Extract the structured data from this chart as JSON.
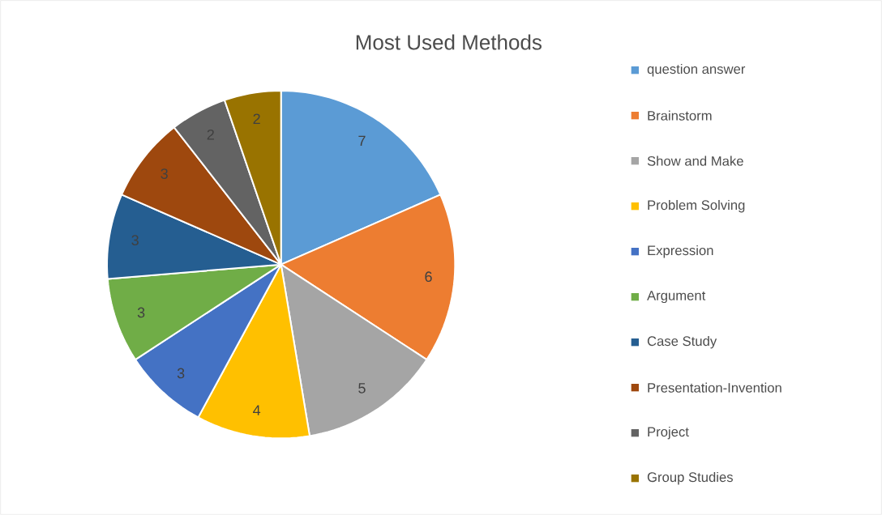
{
  "chart_data": {
    "type": "pie",
    "title": "Most Used Methods",
    "categories": [
      "question answer",
      "Brainstorm",
      "Show and Make",
      "Problem Solving",
      "Expression",
      "Argument",
      "Case Study",
      "Presentation-Invention",
      "Project",
      "Group Studies"
    ],
    "values": [
      7,
      6,
      5,
      4,
      3,
      3,
      3,
      3,
      2,
      2
    ],
    "colors": [
      "#5b9bd5",
      "#ed7d31",
      "#a5a5a5",
      "#ffc000",
      "#4472c4",
      "#70ad47",
      "#255e91",
      "#9e480e",
      "#636363",
      "#997300"
    ],
    "data_labels": true,
    "legend": "right"
  }
}
